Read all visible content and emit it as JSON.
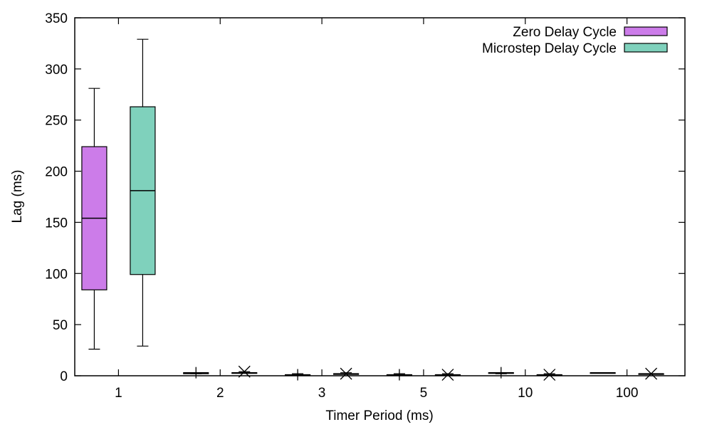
{
  "chart_data": {
    "type": "boxplot",
    "title": "",
    "xlabel": "Timer Period (ms)",
    "ylabel": "Lag (ms)",
    "ylim": [
      0,
      350
    ],
    "yticks": [
      0,
      50,
      100,
      150,
      200,
      250,
      300,
      350
    ],
    "categories": [
      "1",
      "2",
      "3",
      "5",
      "10",
      "100"
    ],
    "legend_position": "top-right",
    "grid": false,
    "series": [
      {
        "name": "Zero Delay Cycle",
        "color": "#cc7ce9",
        "boxes": [
          {
            "min": 26,
            "q1": 84,
            "median": 154,
            "q3": 224,
            "max": 281
          },
          {
            "min": 2,
            "q1": 2,
            "median": 3,
            "q3": 3,
            "max": 3
          },
          {
            "min": 1,
            "q1": 1,
            "median": 1,
            "q3": 1,
            "max": 2
          },
          {
            "min": 1,
            "q1": 1,
            "median": 1,
            "q3": 1,
            "max": 2
          },
          {
            "min": 2,
            "q1": 3,
            "median": 3,
            "q3": 3,
            "max": 3
          },
          {
            "min": 3,
            "q1": 3,
            "median": 3,
            "q3": 3,
            "max": 3
          }
        ],
        "outliers": [
          [],
          [
            3
          ],
          [
            1
          ],
          [
            1
          ],
          [
            3
          ],
          []
        ]
      },
      {
        "name": "Microstep Delay Cycle",
        "color": "#7fd1bc",
        "boxes": [
          {
            "min": 29,
            "q1": 99,
            "median": 181,
            "q3": 263,
            "max": 329
          },
          {
            "min": 3,
            "q1": 3,
            "median": 3,
            "q3": 3,
            "max": 4
          },
          {
            "min": 2,
            "q1": 2,
            "median": 2,
            "q3": 2,
            "max": 3
          },
          {
            "min": 1,
            "q1": 1,
            "median": 1,
            "q3": 1,
            "max": 2
          },
          {
            "min": 1,
            "q1": 1,
            "median": 1,
            "q3": 1,
            "max": 2
          },
          {
            "min": 2,
            "q1": 2,
            "median": 2,
            "q3": 2,
            "max": 2
          }
        ],
        "outliers": [
          [],
          [
            4
          ],
          [
            2
          ],
          [
            1
          ],
          [
            1
          ],
          [
            2
          ]
        ]
      }
    ]
  }
}
